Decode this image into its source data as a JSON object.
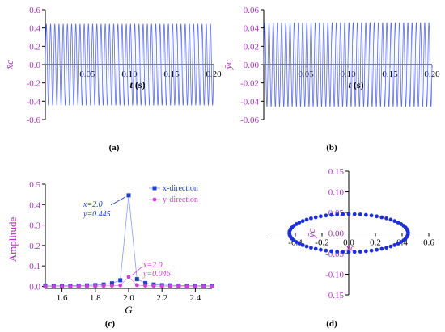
{
  "panels": {
    "a": {
      "label": "(a)"
    },
    "b": {
      "label": "(b)"
    },
    "c": {
      "label": "(c)"
    },
    "d": {
      "label": "(d)"
    }
  },
  "colors": {
    "axis_label": "#b030c8",
    "series_line": "#5a6cf0",
    "x_dir": "#1f3fcc",
    "y_dir": "#d040d8",
    "orbit": "#1f2fd8"
  },
  "chart_data": [
    {
      "type": "line",
      "panel": "a",
      "xlabel_var": "t",
      "xlabel_unit": " (s)",
      "ylabel": "x̄c",
      "xlim": [
        0,
        0.2
      ],
      "ylim": [
        -0.6,
        0.6
      ],
      "xticks": [
        0.05,
        0.1,
        0.15,
        0.2
      ],
      "xtick_labels": [
        "0.05",
        "0.10",
        "0.15",
        "0.20"
      ],
      "yticks": [
        -0.6,
        -0.4,
        -0.2,
        0.0,
        0.2,
        0.4,
        0.6
      ],
      "ytick_labels": [
        "-0.6",
        "-0.4",
        "-0.2",
        "0.0",
        "0.2",
        "0.4",
        "0.6"
      ],
      "series": [
        {
          "amplitude": 0.445,
          "cycles": 40
        }
      ]
    },
    {
      "type": "line",
      "panel": "b",
      "xlabel_var": "t",
      "xlabel_unit": " (s)",
      "ylabel": "ȳc",
      "xlim": [
        0,
        0.2
      ],
      "ylim": [
        -0.06,
        0.06
      ],
      "xticks": [
        0.05,
        0.1,
        0.15,
        0.2
      ],
      "xtick_labels": [
        "0.05",
        "0.10",
        "0.15",
        "0.20"
      ],
      "yticks": [
        -0.06,
        -0.04,
        -0.02,
        0.0,
        0.02,
        0.04,
        0.06
      ],
      "ytick_labels": [
        "-0.06",
        "-0.04",
        "-0.02",
        "0.00",
        "0.02",
        "0.04",
        "0.06"
      ],
      "series": [
        {
          "amplitude": 0.046,
          "cycles": 40
        }
      ]
    },
    {
      "type": "line",
      "panel": "c",
      "xlabel": "G",
      "ylabel": "Amplitude",
      "xlim": [
        1.5,
        2.5
      ],
      "ylim": [
        -0.01,
        0.5
      ],
      "xticks": [
        1.6,
        1.8,
        2.0,
        2.2,
        2.4
      ],
      "xtick_labels": [
        "1.6",
        "1.8",
        "2.0",
        "2.2",
        "2.4"
      ],
      "yticks": [
        0.0,
        0.1,
        0.2,
        0.3,
        0.4,
        0.5
      ],
      "ytick_labels": [
        "0.0",
        "0.1",
        "0.2",
        "0.3",
        "0.4",
        "0.5"
      ],
      "legend": [
        {
          "name": "x-direction",
          "marker": "square"
        },
        {
          "name": "y-direction",
          "marker": "circle"
        }
      ],
      "series": [
        {
          "name": "x-direction",
          "x": [
            1.5,
            1.55,
            1.6,
            1.65,
            1.7,
            1.75,
            1.8,
            1.85,
            1.9,
            1.95,
            2.0,
            2.05,
            2.1,
            2.15,
            2.2,
            2.25,
            2.3,
            2.35,
            2.4,
            2.45,
            2.5
          ],
          "y": [
            0.002,
            0.002,
            0.003,
            0.003,
            0.004,
            0.005,
            0.006,
            0.009,
            0.015,
            0.03,
            0.445,
            0.035,
            0.016,
            0.009,
            0.006,
            0.005,
            0.004,
            0.003,
            0.003,
            0.002,
            0.002
          ]
        },
        {
          "name": "y-direction",
          "x": [
            1.5,
            1.55,
            1.6,
            1.65,
            1.7,
            1.75,
            1.8,
            1.85,
            1.9,
            1.95,
            2.0,
            2.05,
            2.1,
            2.15,
            2.2,
            2.25,
            2.3,
            2.35,
            2.4,
            2.45,
            2.5
          ],
          "y": [
            0.0,
            0.0,
            0.0,
            0.0,
            0.001,
            0.001,
            0.001,
            0.002,
            0.003,
            0.005,
            0.046,
            0.006,
            0.003,
            0.002,
            0.001,
            0.001,
            0.001,
            0.0,
            0.0,
            0.0,
            0.0
          ]
        }
      ],
      "annotations": [
        {
          "series": "x-direction",
          "line1": "x=2.0",
          "line2": "y=0.445"
        },
        {
          "series": "y-direction",
          "line1": "x=2.0",
          "line2": "y=0.046"
        }
      ]
    },
    {
      "type": "scatter",
      "panel": "d",
      "xlabel": "x̄c",
      "ylabel": "ȳc",
      "xlim": [
        -0.6,
        0.6
      ],
      "ylim": [
        -0.15,
        0.15
      ],
      "xticks": [
        -0.4,
        -0.2,
        0.0,
        0.2,
        0.4,
        0.6
      ],
      "xtick_labels": [
        "-0.4",
        "-0.2",
        "0.0",
        "0.2",
        "0.4",
        "0.6"
      ],
      "yticks": [
        -0.15,
        -0.1,
        -0.05,
        0.0,
        0.05,
        0.1,
        0.15
      ],
      "ytick_labels": [
        "-0.15",
        "-0.10",
        "-0.05",
        "0.00",
        "0.05",
        "0.10",
        "0.15"
      ],
      "series": [
        {
          "shape": "ellipse",
          "rx": 0.445,
          "ry": 0.046,
          "points": 64
        }
      ]
    }
  ]
}
